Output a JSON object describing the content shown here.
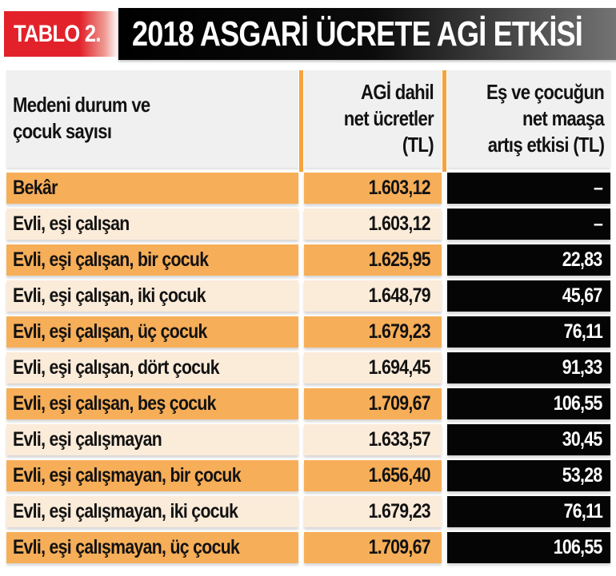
{
  "masthead": {
    "badge_label": "TABLO 2.",
    "title": "2018 ASGARİ ÜCRETE AGİ ETKİSİ"
  },
  "header": {
    "col1_lines": [
      "Medeni durum ve",
      "çocuk sayısı"
    ],
    "col2_lines": [
      "AGİ dahil",
      "net ücretler",
      "(TL)"
    ],
    "col3_lines": [
      "Eş ve çocuğun",
      "net maaşa",
      "artış etkisi (TL)"
    ]
  },
  "rows": [
    {
      "label": "Bekâr",
      "net": "1.603,12",
      "effect": "–"
    },
    {
      "label": "Evli, eşi çalışan",
      "net": "1.603,12",
      "effect": "–"
    },
    {
      "label": "Evli, eşi çalışan, bir çocuk",
      "net": "1.625,95",
      "effect": "22,83"
    },
    {
      "label": "Evli, eşi çalışan, iki çocuk",
      "net": "1.648,79",
      "effect": "45,67"
    },
    {
      "label": "Evli, eşi çalışan, üç çocuk",
      "net": "1.679,23",
      "effect": "76,11"
    },
    {
      "label": "Evli, eşi çalışan, dört çocuk",
      "net": "1.694,45",
      "effect": "91,33"
    },
    {
      "label": "Evli, eşi çalışan, beş çocuk",
      "net": "1.709,67",
      "effect": "106,55"
    },
    {
      "label": "Evli, eşi çalışmayan",
      "net": "1.633,57",
      "effect": "30,45"
    },
    {
      "label": "Evli, eşi çalışmayan, bir çocuk",
      "net": "1.656,40",
      "effect": "53,28"
    },
    {
      "label": "Evli, eşi çalışmayan, iki çocuk",
      "net": "1.679,23",
      "effect": "76,11"
    },
    {
      "label": "Evli, eşi çalışmayan, üç çocuk",
      "net": "1.709,67",
      "effect": "106,55"
    }
  ],
  "colors": {
    "badge_red": "#e2212a",
    "row_orange": "#f7ae58",
    "row_cream": "#fbebd9",
    "divider_orange": "#f6a33c",
    "header_gray": "#f0f0f0",
    "black_cell": "#050505"
  },
  "chart_data": {
    "type": "table",
    "title": "2018 ASGARİ ÜCRETE AGİ ETKİSİ",
    "columns": [
      "Medeni durum ve çocuk sayısı",
      "AGİ dahil net ücretler (TL)",
      "Eş ve çocuğun net maaşa artış etkisi (TL)"
    ],
    "rows": [
      [
        "Bekâr",
        "1.603,12",
        "–"
      ],
      [
        "Evli, eşi çalışan",
        "1.603,12",
        "–"
      ],
      [
        "Evli, eşi çalışan, bir çocuk",
        "1.625,95",
        "22,83"
      ],
      [
        "Evli, eşi çalışan, iki çocuk",
        "1.648,79",
        "45,67"
      ],
      [
        "Evli, eşi çalışan, üç çocuk",
        "1.679,23",
        "76,11"
      ],
      [
        "Evli, eşi çalışan, dört çocuk",
        "1.694,45",
        "91,33"
      ],
      [
        "Evli, eşi çalışan, beş çocuk",
        "1.709,67",
        "106,55"
      ],
      [
        "Evli, eşi çalışmayan",
        "1.633,57",
        "30,45"
      ],
      [
        "Evli, eşi çalışmayan, bir çocuk",
        "1.656,40",
        "53,28"
      ],
      [
        "Evli, eşi çalışmayan, iki çocuk",
        "1.679,23",
        "76,11"
      ],
      [
        "Evli, eşi çalışmayan, üç çocuk",
        "1.709,67",
        "106,55"
      ]
    ],
    "net_values_numeric": [
      1603.12,
      1603.12,
      1625.95,
      1648.79,
      1679.23,
      1694.45,
      1709.67,
      1633.57,
      1656.4,
      1679.23,
      1709.67
    ],
    "effect_values_numeric": [
      null,
      null,
      22.83,
      45.67,
      76.11,
      91.33,
      106.55,
      30.45,
      53.28,
      76.11,
      106.55
    ]
  }
}
